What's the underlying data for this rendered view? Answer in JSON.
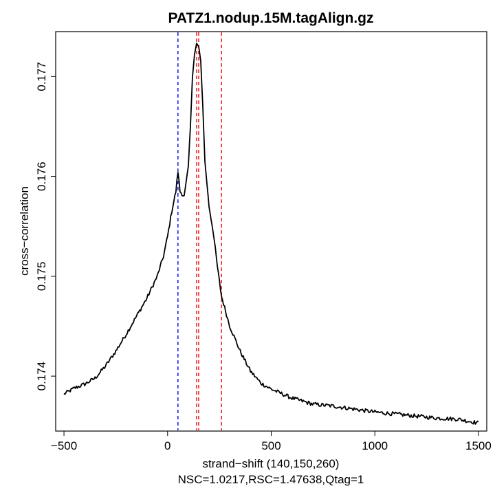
{
  "chart_data": {
    "type": "line",
    "title": "PATZ1.nodup.15M.tagAlign.gz",
    "xlabel": "strand−shift (140,150,260)",
    "ylabel": "cross−correlation",
    "subtitle": "NSC=1.0217,RSC=1.47638,Qtag=1",
    "xlim": [
      -540,
      1540
    ],
    "ylim": [
      0.17345,
      0.17745
    ],
    "x_ticks": [
      -500,
      0,
      500,
      1000,
      1500
    ],
    "x_tick_labels": [
      "−500",
      "0",
      "500",
      "1000",
      "1500"
    ],
    "y_ticks": [
      0.174,
      0.175,
      0.176,
      0.177
    ],
    "y_tick_labels": [
      "0.174",
      "0.175",
      "0.176",
      "0.177"
    ],
    "vlines": [
      {
        "x": 50,
        "color": "#0000ff",
        "style": "dashed"
      },
      {
        "x": 140,
        "color": "#ff0000",
        "style": "dashed"
      },
      {
        "x": 150,
        "color": "#ff0000",
        "style": "dashed"
      },
      {
        "x": 260,
        "color": "#ff0000",
        "style": "dashed"
      }
    ],
    "series": [
      {
        "name": "cross-correlation",
        "color": "#000000",
        "x": [
          -500,
          -450,
          -400,
          -350,
          -300,
          -250,
          -200,
          -150,
          -100,
          -50,
          -20,
          0,
          20,
          40,
          50,
          60,
          80,
          100,
          110,
          120,
          130,
          140,
          150,
          160,
          170,
          180,
          200,
          220,
          240,
          260,
          300,
          350,
          400,
          450,
          500,
          600,
          700,
          800,
          900,
          1000,
          1100,
          1200,
          1300,
          1400,
          1450,
          1500
        ],
        "y": [
          0.17382,
          0.17388,
          0.17392,
          0.17398,
          0.1741,
          0.17425,
          0.17442,
          0.1746,
          0.17478,
          0.175,
          0.1752,
          0.1754,
          0.17565,
          0.17585,
          0.17605,
          0.17585,
          0.1758,
          0.1761,
          0.1765,
          0.177,
          0.17722,
          0.17733,
          0.1773,
          0.17715,
          0.1767,
          0.17615,
          0.1757,
          0.17545,
          0.1751,
          0.1748,
          0.1745,
          0.17425,
          0.17405,
          0.17393,
          0.17387,
          0.17378,
          0.17372,
          0.1737,
          0.17367,
          0.17364,
          0.17362,
          0.1736,
          0.17358,
          0.17357,
          0.17355,
          0.17353
        ]
      }
    ]
  }
}
